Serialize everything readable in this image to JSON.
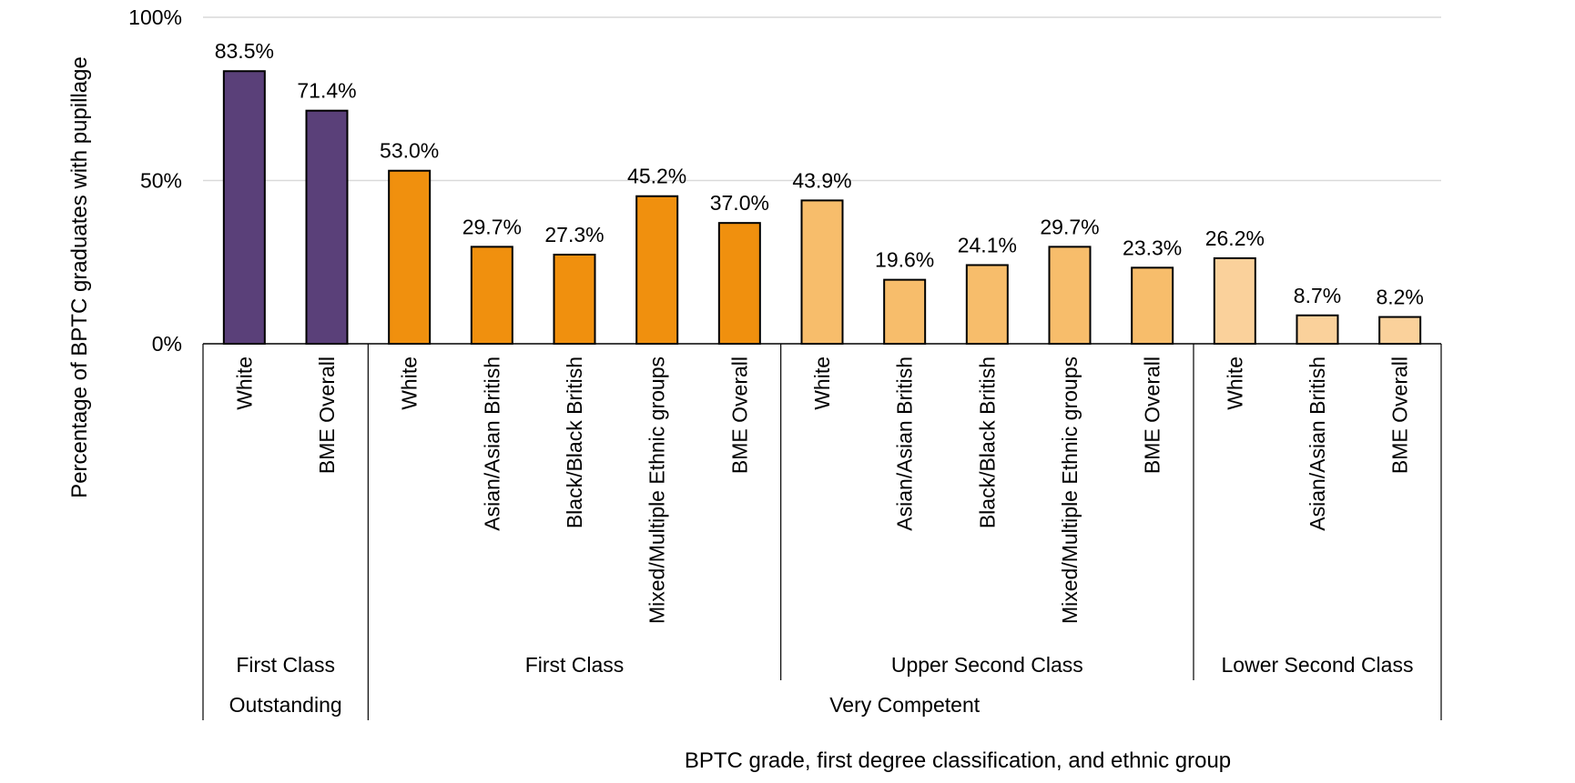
{
  "chart_data": {
    "type": "bar",
    "ylabel": "Percentage of BPTC graduates with pupillage",
    "xlabel": "BPTC grade, first degree classification, and ethnic group",
    "ylim": [
      0,
      100
    ],
    "yticks": [
      0,
      50,
      100
    ],
    "ytick_labels": [
      "0%",
      "50%",
      "100%"
    ],
    "grid": true,
    "colors": {
      "outstanding": "#5a4079",
      "first_class": "#f0900e",
      "upper_second": "#f7bd6b",
      "lower_second": "#fad19b",
      "bar_outline": "#000000",
      "gridline": "#d9d9d9"
    },
    "categories": [
      "White",
      "BME Overall",
      "White",
      "Asian/Asian British",
      "Black/Black British",
      "Mixed/Multiple Ethnic groups",
      "BME Overall",
      "White",
      "Asian/Asian British",
      "Black/Black British",
      "Mixed/Multiple Ethnic groups",
      "BME Overall",
      "White",
      "Asian/Asian British",
      "BME Overall"
    ],
    "values": [
      83.5,
      71.4,
      53.0,
      29.7,
      27.3,
      45.2,
      37.0,
      43.9,
      19.6,
      24.1,
      29.7,
      23.3,
      26.2,
      8.7,
      8.2
    ],
    "data_labels": [
      "83.5%",
      "71.4%",
      "53.0%",
      "29.7%",
      "27.3%",
      "45.2%",
      "37.0%",
      "43.9%",
      "19.6%",
      "24.1%",
      "29.7%",
      "23.3%",
      "26.2%",
      "8.7%",
      "8.2%"
    ],
    "bar_color_keys": [
      "outstanding",
      "outstanding",
      "first_class",
      "first_class",
      "first_class",
      "first_class",
      "first_class",
      "upper_second",
      "upper_second",
      "upper_second",
      "upper_second",
      "upper_second",
      "lower_second",
      "lower_second",
      "lower_second"
    ],
    "degree_groups": [
      {
        "label": "First Class",
        "count": 2
      },
      {
        "label": "First Class",
        "count": 5
      },
      {
        "label": "Upper Second Class",
        "count": 5
      },
      {
        "label": "Lower Second Class",
        "count": 3
      }
    ],
    "grade_groups": [
      {
        "label": "Outstanding",
        "count": 2
      },
      {
        "label": "Very Competent",
        "count": 13
      }
    ]
  }
}
